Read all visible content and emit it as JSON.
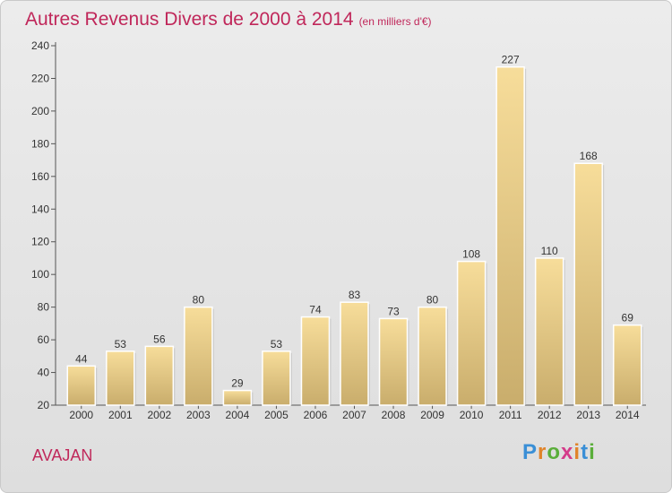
{
  "header": {
    "title": "Autres Revenus Divers de 2000 à 2014",
    "unit": "(en milliers d'€)"
  },
  "footer": {
    "commune": "AVAJAN",
    "logo": "Proxiti"
  },
  "colors": {
    "title": "#c0275a",
    "bar_light": "#f7dd9a",
    "bar_dark": "#c9ad6c"
  },
  "chart_data": {
    "type": "bar",
    "title": "Autres Revenus Divers de 2000 à 2014",
    "subtitle": "(en milliers d'€)",
    "xlabel": "",
    "ylabel": "",
    "categories": [
      "2000",
      "2001",
      "2002",
      "2003",
      "2004",
      "2005",
      "2006",
      "2007",
      "2008",
      "2009",
      "2010",
      "2011",
      "2012",
      "2013",
      "2014"
    ],
    "values": [
      44,
      53,
      56,
      80,
      29,
      53,
      74,
      83,
      73,
      80,
      108,
      227,
      110,
      168,
      69
    ],
    "ylim": [
      20,
      240
    ],
    "yticks": [
      20,
      40,
      60,
      80,
      100,
      120,
      140,
      160,
      180,
      200,
      220,
      240
    ],
    "grid": false,
    "legend": "none"
  }
}
